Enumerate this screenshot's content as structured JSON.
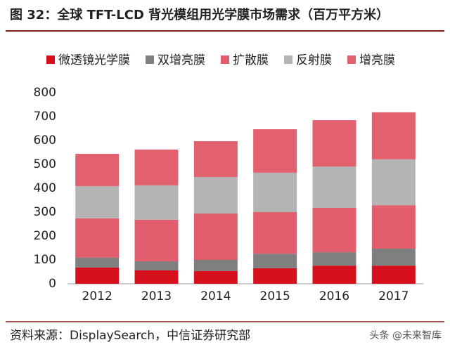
{
  "chart_data": {
    "type": "stacked_bar",
    "title": "图 32：全球 TFT-LCD 背光模组用光学膜市场需求（百万平方米）",
    "categories": [
      "2012",
      "2013",
      "2014",
      "2015",
      "2016",
      "2017"
    ],
    "series": [
      {
        "name": "微透镜光学膜",
        "color": "#d7101d",
        "values": [
          68,
          56,
          53,
          65,
          76,
          76
        ]
      },
      {
        "name": "双增亮膜",
        "color": "#7f7f7f",
        "values": [
          41,
          38,
          47,
          61,
          56,
          71
        ]
      },
      {
        "name": "扩散膜",
        "color": "#e25d6e",
        "values": [
          165,
          174,
          194,
          174,
          186,
          182
        ]
      },
      {
        "name": "反射膜",
        "color": "#b4b4b4",
        "values": [
          135,
          144,
          153,
          165,
          173,
          192
        ]
      },
      {
        "name": "增亮膜",
        "color": "#e3606f",
        "values": [
          135,
          150,
          150,
          182,
          194,
          197
        ]
      }
    ],
    "ylim": [
      0,
      800
    ],
    "yticks": [
      0,
      100,
      200,
      300,
      400,
      500,
      600,
      700,
      800
    ],
    "source": "资料来源：DisplaySearch，中信证券研究部",
    "watermark": "头条 @未来智库"
  }
}
